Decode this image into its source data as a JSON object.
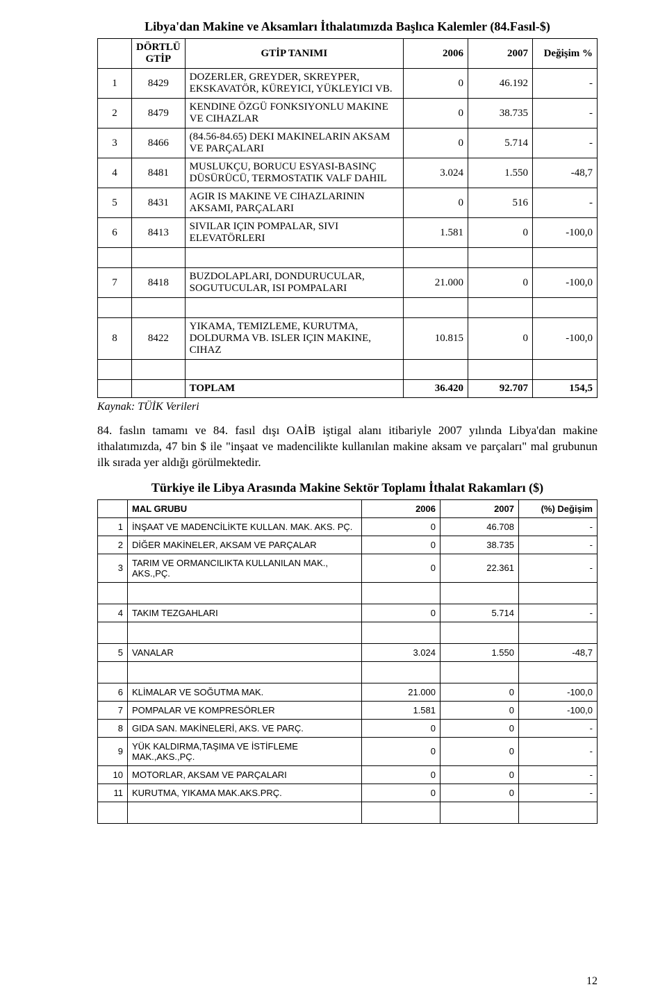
{
  "page_number": "12",
  "table1": {
    "title": "Libya'dan Makine ve Aksamları İthalatımızda Başlıca Kalemler (84.Fasıl-$)",
    "headers": {
      "col1": "DÖRTLÜ GTİP",
      "col2": "GTİP TANIMI",
      "col3": "2006",
      "col4": "2007",
      "col5": "Değişim %"
    },
    "rows": [
      {
        "idx": "1",
        "code": "8429",
        "name": "DOZERLER, GREYDER, SKREYPER, EKSKAVATÖR, KÜREYICI, YÜKLEYICI VB.",
        "v2006": "0",
        "v2007": "46.192",
        "chg": "-"
      },
      {
        "idx": "2",
        "code": "8479",
        "name": "KENDINE ÖZGÜ FONKSIYONLU MAKINE VE CIHAZLAR",
        "v2006": "0",
        "v2007": "38.735",
        "chg": "-"
      },
      {
        "idx": "3",
        "code": "8466",
        "name": "(84.56-84.65) DEKI MAKINELARIN AKSAM VE PARÇALARI",
        "v2006": "0",
        "v2007": "5.714",
        "chg": "-"
      },
      {
        "idx": "4",
        "code": "8481",
        "name": "MUSLUKÇU, BORUCU ESYASI-BASINÇ DÜSÜRÜCÜ, TERMOSTATIK VALF DAHIL",
        "v2006": "3.024",
        "v2007": "1.550",
        "chg": "-48,7"
      },
      {
        "idx": "5",
        "code": "8431",
        "name": "AGIR IS MAKINE VE CIHAZLARININ AKSAMI, PARÇALARI",
        "v2006": "0",
        "v2007": "516",
        "chg": "-"
      },
      {
        "idx": "6",
        "code": "8413",
        "name": "SIVILAR IÇIN POMPALAR, SIVI ELEVATÖRLERI",
        "v2006": "1.581",
        "v2007": "0",
        "chg": "-100,0"
      },
      {
        "idx": "7",
        "code": "8418",
        "name": "BUZDOLAPLARI, DONDURUCULAR, SOGUTUCULAR, ISI POMPALARI",
        "v2006": "21.000",
        "v2007": "0",
        "chg": "-100,0"
      },
      {
        "idx": "8",
        "code": "8422",
        "name": "YIKAMA, TEMIZLEME, KURUTMA, DOLDURMA VB. ISLER IÇIN MAKINE, CIHAZ",
        "v2006": "10.815",
        "v2007": "0",
        "chg": "-100,0"
      }
    ],
    "total": {
      "label": "TOPLAM",
      "v2006": "36.420",
      "v2007": "92.707",
      "chg": "154,5"
    },
    "source": "Kaynak: TÜİK Verileri"
  },
  "paragraph": "84. faslın tamamı ve 84. fasıl dışı OAİB iştigal alanı itibariyle 2007 yılında Libya'dan makine ithalatımızda, 47 bin $ ile \"inşaat ve madencilikte kullanılan makine aksam ve parçaları\" mal grubunun ilk sırada yer aldığı görülmektedir.",
  "table2": {
    "title": "Türkiye ile Libya Arasında Makine Sektör Toplamı İthalat Rakamları ($)",
    "headers": {
      "col1": "MAL GRUBU",
      "col2": "2006",
      "col3": "2007",
      "col4": "(%) Değişim"
    },
    "rows": [
      {
        "idx": "1",
        "name": "İNŞAAT VE MADENCİLİKTE KULLAN. MAK. AKS. PÇ.",
        "v2006": "0",
        "v2007": "46.708",
        "chg": "-"
      },
      {
        "idx": "2",
        "name": "DİĞER MAKİNELER, AKSAM VE PARÇALAR",
        "v2006": "0",
        "v2007": "38.735",
        "chg": "-"
      },
      {
        "idx": "3",
        "name": "TARIM VE ORMANCILIKTA KULLANILAN MAK., AKS.,PÇ.",
        "v2006": "0",
        "v2007": "22.361",
        "chg": "-"
      },
      {
        "idx": "4",
        "name": "TAKIM TEZGAHLARI",
        "v2006": "0",
        "v2007": "5.714",
        "chg": "-"
      },
      {
        "idx": "5",
        "name": "VANALAR",
        "v2006": "3.024",
        "v2007": "1.550",
        "chg": "-48,7"
      },
      {
        "idx": "6",
        "name": "KLİMALAR VE SOĞUTMA MAK.",
        "v2006": "21.000",
        "v2007": "0",
        "chg": "-100,0"
      },
      {
        "idx": "7",
        "name": "POMPALAR VE KOMPRESÖRLER",
        "v2006": "1.581",
        "v2007": "0",
        "chg": "-100,0"
      },
      {
        "idx": "8",
        "name": "GIDA SAN. MAKİNELERİ, AKS. VE PARÇ.",
        "v2006": "0",
        "v2007": "0",
        "chg": "-"
      },
      {
        "idx": "9",
        "name": "YÜK KALDIRMA,TAŞIMA VE İSTİFLEME MAK.,AKS.,PÇ.",
        "v2006": "0",
        "v2007": "0",
        "chg": "-"
      },
      {
        "idx": "10",
        "name": "MOTORLAR, AKSAM VE PARÇALARI",
        "v2006": "0",
        "v2007": "0",
        "chg": "-"
      },
      {
        "idx": "11",
        "name": "KURUTMA, YIKAMA MAK.AKS.PRÇ.",
        "v2006": "0",
        "v2007": "0",
        "chg": "-"
      }
    ]
  }
}
